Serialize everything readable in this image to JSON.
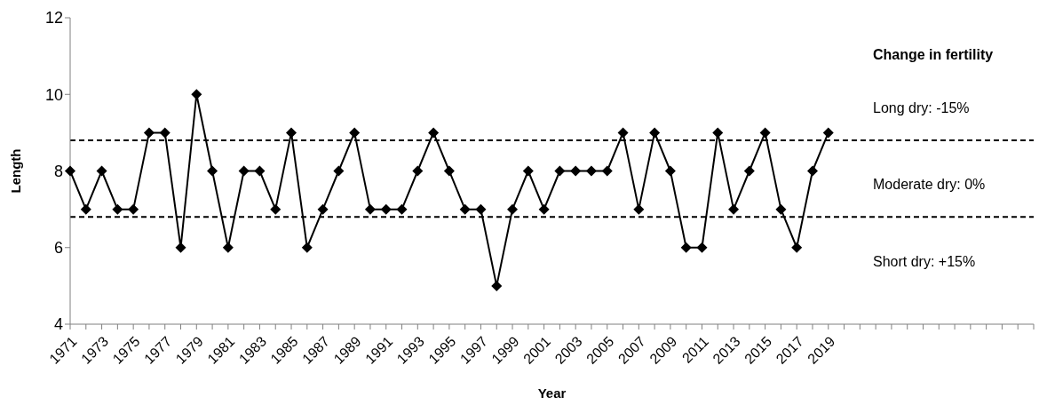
{
  "chart_data": {
    "type": "line",
    "xlabel": "Year",
    "ylabel": "Length",
    "categories": [
      "1971",
      null,
      "1973",
      null,
      "1975",
      null,
      "1977",
      null,
      "1979",
      null,
      "1981",
      null,
      "1983",
      null,
      "1985",
      null,
      "1987",
      null,
      "1989",
      null,
      "1991",
      null,
      "1993",
      null,
      "1995",
      null,
      "1997",
      null,
      "1999",
      null,
      "2001",
      null,
      "2003",
      null,
      "2005",
      null,
      "2007",
      null,
      "2009",
      null,
      "2011",
      null,
      "2013",
      null,
      "2015",
      null,
      "2017",
      null,
      "2019",
      null,
      null,
      null,
      null,
      null,
      null,
      null,
      null,
      null,
      null,
      null,
      null,
      null
    ],
    "series": [
      {
        "color": "#000000",
        "values": [
          8,
          7,
          8,
          7,
          7,
          9,
          9,
          6,
          10,
          8,
          6,
          8,
          8,
          7,
          9,
          6,
          7,
          8,
          9,
          7,
          7,
          7,
          8,
          9,
          8,
          7,
          7,
          5,
          7,
          8,
          7,
          8,
          8,
          8,
          8,
          9,
          7,
          9,
          8,
          6,
          6,
          9,
          7,
          8,
          9,
          7,
          6,
          8,
          9,
          null,
          null,
          null,
          null,
          null,
          null,
          null,
          null,
          null,
          null,
          null,
          null,
          null
        ]
      }
    ],
    "ylim": [
      4,
      12
    ],
    "yticks": [
      4,
      6,
      8,
      10,
      12
    ],
    "marker": "diamond",
    "line_style": "solid",
    "ref_lines": [
      {
        "axis": "y",
        "value": 8.8,
        "color": "#000000",
        "line_style": "dashed"
      },
      {
        "axis": "y",
        "value": 6.8,
        "color": "#000000",
        "line_style": "dashed"
      }
    ],
    "annotations": [
      "Change in fertility",
      "Long dry: -15%",
      "Moderate dry: 0%",
      "Short dry: +15%"
    ]
  }
}
